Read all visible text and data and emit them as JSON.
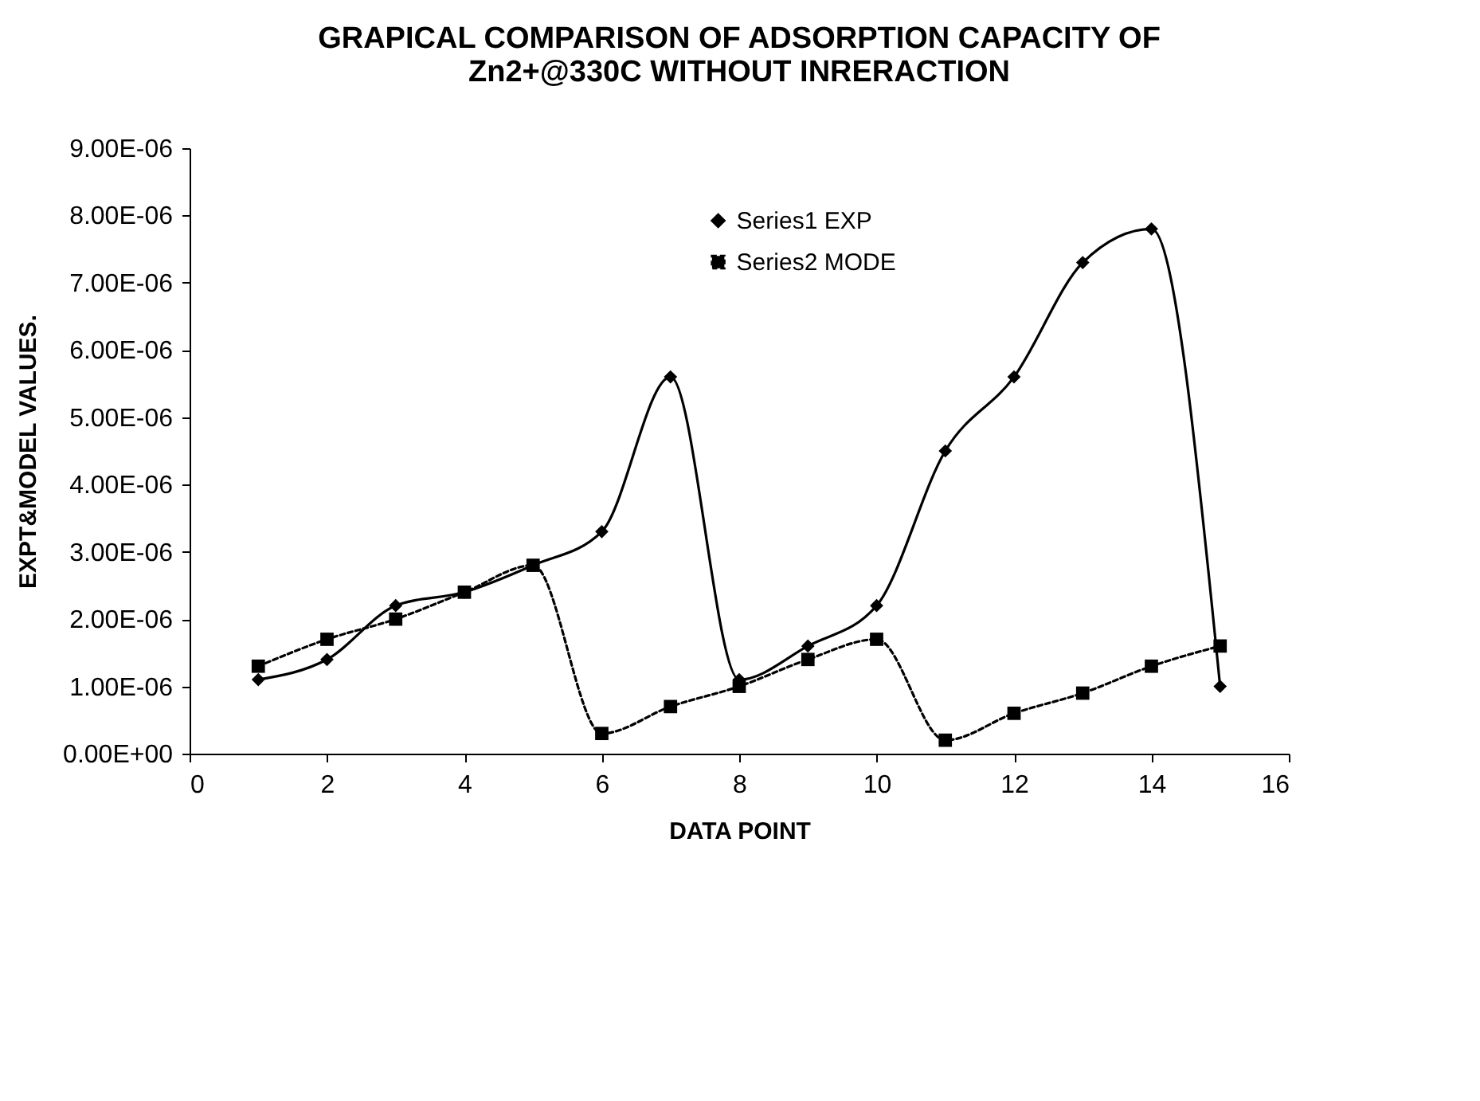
{
  "chart_data": {
    "type": "line",
    "title": "GRAPICAL COMPARISON OF ADSORPTION CAPACITY OF\nZn2+@330C WITHOUT INRERACTION",
    "xlabel": "DATA POINT",
    "ylabel": "EXPT&MODEL VALUES.",
    "x": [
      1,
      2,
      3,
      4,
      5,
      6,
      7,
      8,
      9,
      10,
      11,
      12,
      13,
      14,
      15
    ],
    "series": [
      {
        "name": "Series1 EXP",
        "color": "#000000",
        "marker": "diamond",
        "line_style": "solid",
        "values": [
          1.1e-06,
          1.4e-06,
          2.2e-06,
          2.4e-06,
          2.8e-06,
          3.3e-06,
          5.6e-06,
          1.1e-06,
          1.6e-06,
          2.2e-06,
          4.5e-06,
          5.6e-06,
          7.3e-06,
          7.8e-06,
          1e-06
        ]
      },
      {
        "name": "Series2 MODE",
        "color": "#000000",
        "marker": "square",
        "line_style": "dashed",
        "values": [
          1.3e-06,
          1.7e-06,
          2e-06,
          2.4e-06,
          2.8e-06,
          3e-07,
          7e-07,
          1e-06,
          1.4e-06,
          1.7e-06,
          2e-07,
          6e-07,
          9e-07,
          1.3e-06,
          1.6e-06
        ]
      }
    ],
    "xlim": [
      0,
      16
    ],
    "xticks": [
      0,
      2,
      4,
      6,
      8,
      10,
      12,
      14,
      16
    ],
    "ylim": [
      0,
      9e-06
    ],
    "yticks": [
      {
        "value": 0,
        "label": "0.00E+00"
      },
      {
        "value": 1e-06,
        "label": "1.00E-06"
      },
      {
        "value": 2e-06,
        "label": "2.00E-06"
      },
      {
        "value": 3e-06,
        "label": "3.00E-06"
      },
      {
        "value": 4e-06,
        "label": "4.00E-06"
      },
      {
        "value": 5e-06,
        "label": "5.00E-06"
      },
      {
        "value": 6e-06,
        "label": "6.00E-06"
      },
      {
        "value": 7e-06,
        "label": "7.00E-06"
      },
      {
        "value": 8e-06,
        "label": "8.00E-06"
      },
      {
        "value": 9e-06,
        "label": "9.00E-06"
      }
    ],
    "legend": "top",
    "grid": false
  }
}
